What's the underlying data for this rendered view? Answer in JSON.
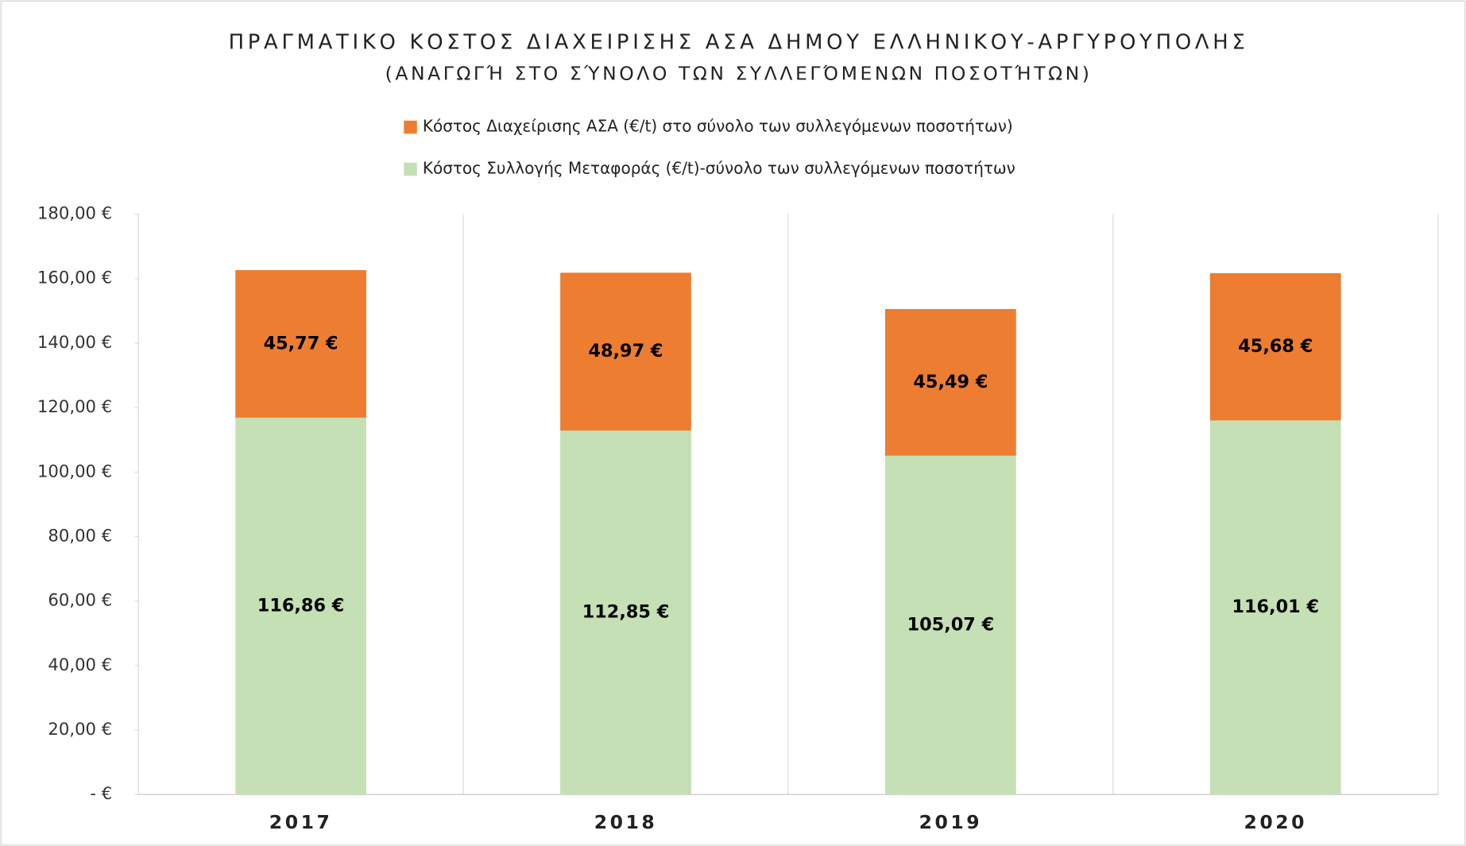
{
  "chart_data": {
    "type": "stacked_bar",
    "title": "ΠΡΑΓΜΑΤΙΚΟ ΚΟΣΤΟΣ ΔΙΑΧΕΙΡΙΣΗΣ ΑΣΑ ΔΗΜΟΥ ΕΛΛΗΝΙΚΟΥ-ΑΡΓΥΡΟΥΠΟΛΗΣ",
    "subtitle": "(ΑΝΑΓΩΓΉ ΣΤΟ ΣΎΝΟΛΟ ΤΩΝ ΣΥΛΛΕΓΌΜΕΝΩΝ ΠΟΣΟΤΉΤΩΝ)",
    "categories": [
      "2017",
      "2018",
      "2019",
      "2020"
    ],
    "series": [
      {
        "name": "Κόστος Συλλογής Μεταφοράς (€/t)-σύνολο των συλλεγόμενων ποσοτήτων",
        "color": "#c5e0b4",
        "values": [
          116.86,
          112.85,
          105.07,
          116.01
        ],
        "value_labels": [
          "116,86 €",
          "112,85 €",
          "105,07 €",
          "116,01 €"
        ]
      },
      {
        "name": "Κόστος Διαχείρισης ΑΣΑ (€/t) στο σύνολο των συλλεγόμενων ποσοτήτων)",
        "color": "#ed7d31",
        "values": [
          45.77,
          48.97,
          45.49,
          45.68
        ],
        "value_labels": [
          "45,77 €",
          "48,97 €",
          "45,49 €",
          "45,68 €"
        ]
      }
    ],
    "ylim": [
      0,
      180
    ],
    "yticks": [
      {
        "value": 0,
        "label": "-   €"
      },
      {
        "value": 20,
        "label": "20,00 €"
      },
      {
        "value": 40,
        "label": "40,00 €"
      },
      {
        "value": 60,
        "label": "60,00 €"
      },
      {
        "value": 80,
        "label": "80,00 €"
      },
      {
        "value": 100,
        "label": "100,00 €"
      },
      {
        "value": 120,
        "label": "120,00 €"
      },
      {
        "value": 140,
        "label": "140,00 €"
      },
      {
        "value": 160,
        "label": "160,00 €"
      },
      {
        "value": 180,
        "label": "180,00 €"
      }
    ],
    "legend": "top"
  }
}
